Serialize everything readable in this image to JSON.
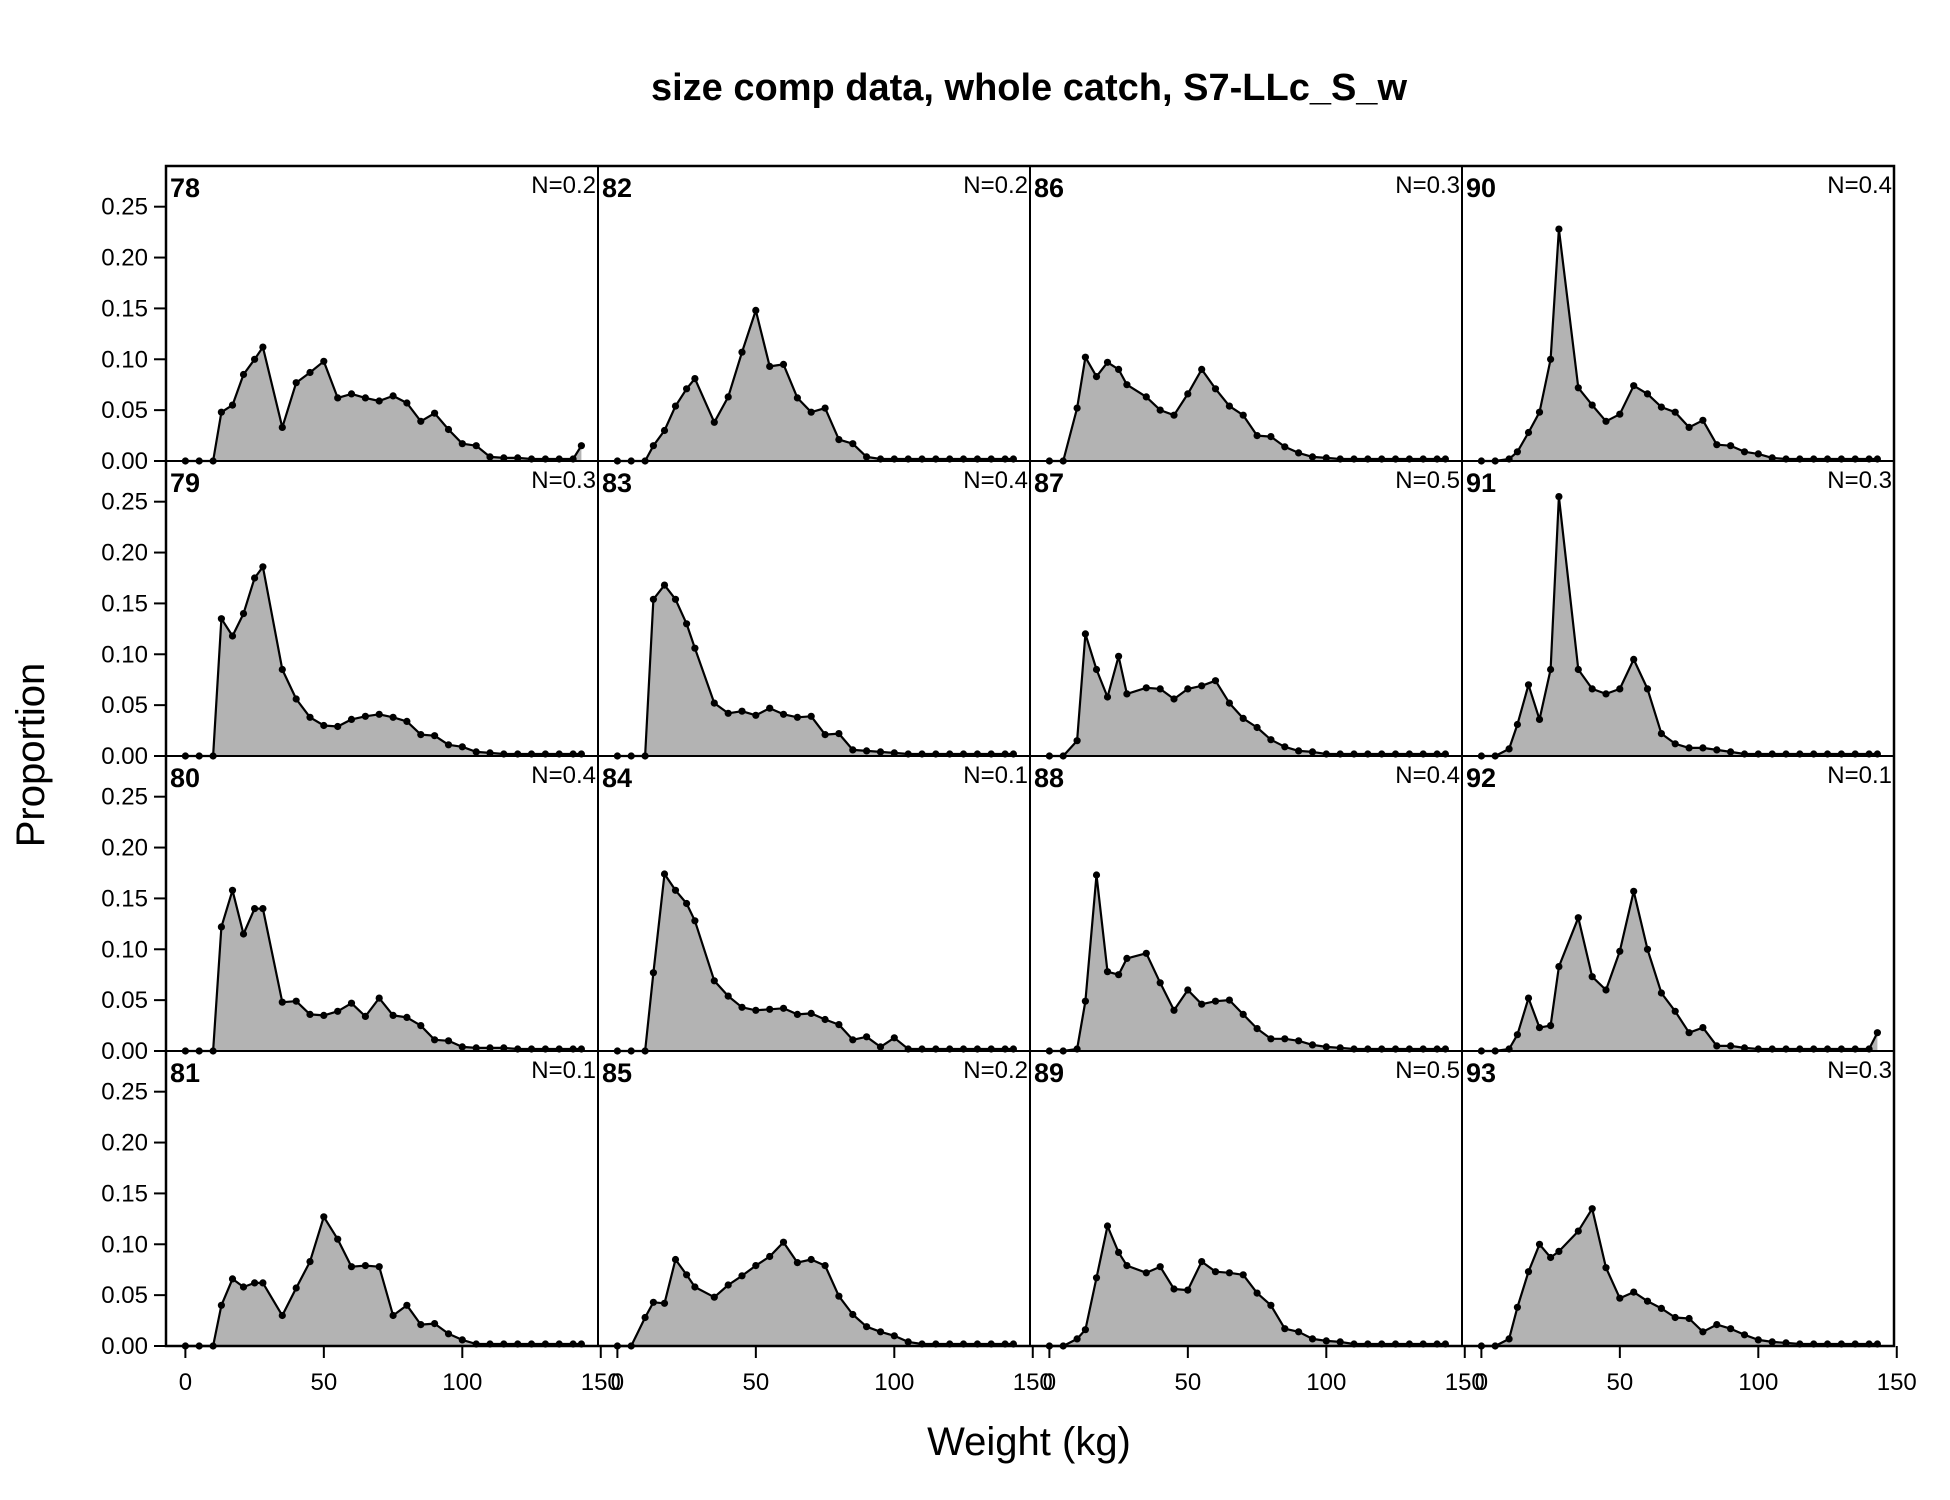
{
  "chart_data": {
    "type": "area",
    "title": "size comp data, whole catch, S7-LLc_S_w",
    "xlabel": "Weight (kg)",
    "ylabel": "Proportion",
    "xlim": [
      -7,
      149
    ],
    "ylim": [
      0,
      0.29
    ],
    "xticks": [
      0,
      50,
      100,
      150
    ],
    "xtick_labels": [
      "0",
      "50",
      "100",
      "150"
    ],
    "yticks": [
      0,
      0.05,
      0.1,
      0.15,
      0.2,
      0.25
    ],
    "ytick_labels": [
      "0.00",
      "0.05",
      "0.10",
      "0.15",
      "0.20",
      "0.25"
    ],
    "grid": false,
    "layout": {
      "rows": 4,
      "cols": 4,
      "order": "column-major"
    },
    "fill_color": "#b3b3b3",
    "line_color": "#000000",
    "x": [
      0,
      5,
      10,
      13,
      17,
      21,
      25,
      28,
      35,
      40,
      45,
      50,
      55,
      60,
      65,
      70,
      75,
      80,
      85,
      90,
      95,
      100,
      105,
      110,
      115,
      120,
      125,
      130,
      135,
      140,
      143
    ],
    "panels": [
      {
        "label": "78",
        "n_label": "N=0.2",
        "values": [
          0,
          0,
          0,
          0.048,
          0.055,
          0.085,
          0.1,
          0.112,
          0.033,
          0.077,
          0.087,
          0.098,
          0.062,
          0.066,
          0.062,
          0.059,
          0.064,
          0.057,
          0.039,
          0.047,
          0.031,
          0.017,
          0.015,
          0.004,
          0.003,
          0.003,
          0.002,
          0.002,
          0.002,
          0.002,
          0.015
        ]
      },
      {
        "label": "79",
        "n_label": "N=0.3",
        "values": [
          0,
          0,
          0,
          0.135,
          0.118,
          0.14,
          0.175,
          0.186,
          0.085,
          0.056,
          0.038,
          0.03,
          0.029,
          0.036,
          0.039,
          0.041,
          0.038,
          0.034,
          0.021,
          0.02,
          0.011,
          0.009,
          0.004,
          0.003,
          0.002,
          0.002,
          0.002,
          0.002,
          0.002,
          0.002,
          0.002
        ]
      },
      {
        "label": "80",
        "n_label": "N=0.4",
        "values": [
          0,
          0,
          0,
          0.122,
          0.158,
          0.115,
          0.14,
          0.14,
          0.048,
          0.049,
          0.036,
          0.035,
          0.039,
          0.047,
          0.034,
          0.052,
          0.035,
          0.033,
          0.025,
          0.011,
          0.01,
          0.004,
          0.003,
          0.003,
          0.003,
          0.002,
          0.002,
          0.002,
          0.002,
          0.002,
          0.002
        ]
      },
      {
        "label": "81",
        "n_label": "N=0.1",
        "values": [
          0,
          0,
          0,
          0.04,
          0.066,
          0.058,
          0.062,
          0.062,
          0.03,
          0.057,
          0.083,
          0.127,
          0.105,
          0.078,
          0.079,
          0.078,
          0.03,
          0.04,
          0.021,
          0.022,
          0.012,
          0.006,
          0.002,
          0.002,
          0.002,
          0.002,
          0.002,
          0.002,
          0.002,
          0.002,
          0.002
        ]
      },
      {
        "label": "82",
        "n_label": "N=0.2",
        "values": [
          0,
          0,
          0,
          0.015,
          0.03,
          0.054,
          0.071,
          0.081,
          0.038,
          0.063,
          0.107,
          0.148,
          0.093,
          0.095,
          0.062,
          0.048,
          0.052,
          0.021,
          0.017,
          0.004,
          0.002,
          0.002,
          0.002,
          0.002,
          0.002,
          0.002,
          0.002,
          0.002,
          0.002,
          0.002,
          0.002
        ]
      },
      {
        "label": "83",
        "n_label": "N=0.4",
        "values": [
          0,
          0,
          0,
          0.154,
          0.168,
          0.154,
          0.13,
          0.106,
          0.052,
          0.042,
          0.044,
          0.04,
          0.047,
          0.041,
          0.038,
          0.039,
          0.021,
          0.022,
          0.006,
          0.005,
          0.004,
          0.003,
          0.002,
          0.002,
          0.002,
          0.002,
          0.002,
          0.002,
          0.002,
          0.002,
          0.002
        ]
      },
      {
        "label": "84",
        "n_label": "N=0.1",
        "values": [
          0,
          0,
          0,
          0.077,
          0.174,
          0.158,
          0.145,
          0.128,
          0.069,
          0.054,
          0.043,
          0.04,
          0.041,
          0.042,
          0.036,
          0.037,
          0.031,
          0.026,
          0.011,
          0.014,
          0.004,
          0.013,
          0.002,
          0.002,
          0.002,
          0.002,
          0.002,
          0.002,
          0.002,
          0.002,
          0.002
        ]
      },
      {
        "label": "85",
        "n_label": "N=0.2",
        "values": [
          0,
          0,
          0.028,
          0.043,
          0.042,
          0.085,
          0.07,
          0.058,
          0.048,
          0.06,
          0.069,
          0.079,
          0.088,
          0.102,
          0.082,
          0.085,
          0.079,
          0.049,
          0.031,
          0.019,
          0.014,
          0.01,
          0.004,
          0.002,
          0.002,
          0.002,
          0.002,
          0.002,
          0.002,
          0.002,
          0.002
        ]
      },
      {
        "label": "86",
        "n_label": "N=0.3",
        "values": [
          0,
          0,
          0.052,
          0.102,
          0.083,
          0.097,
          0.09,
          0.075,
          0.063,
          0.05,
          0.045,
          0.066,
          0.09,
          0.071,
          0.054,
          0.045,
          0.025,
          0.024,
          0.014,
          0.008,
          0.004,
          0.003,
          0.002,
          0.002,
          0.002,
          0.002,
          0.002,
          0.002,
          0.002,
          0.002,
          0.002
        ]
      },
      {
        "label": "87",
        "n_label": "N=0.5",
        "values": [
          0,
          0,
          0.015,
          0.12,
          0.085,
          0.058,
          0.098,
          0.061,
          0.067,
          0.066,
          0.056,
          0.066,
          0.069,
          0.074,
          0.052,
          0.037,
          0.028,
          0.016,
          0.009,
          0.005,
          0.004,
          0.002,
          0.002,
          0.002,
          0.002,
          0.002,
          0.002,
          0.002,
          0.002,
          0.002,
          0.002
        ]
      },
      {
        "label": "88",
        "n_label": "N=0.4",
        "values": [
          0,
          0,
          0.002,
          0.049,
          0.173,
          0.078,
          0.075,
          0.091,
          0.096,
          0.067,
          0.04,
          0.06,
          0.046,
          0.049,
          0.05,
          0.036,
          0.022,
          0.012,
          0.012,
          0.01,
          0.006,
          0.004,
          0.003,
          0.002,
          0.002,
          0.002,
          0.002,
          0.002,
          0.002,
          0.002,
          0.002
        ]
      },
      {
        "label": "89",
        "n_label": "N=0.5",
        "values": [
          0,
          0,
          0.007,
          0.016,
          0.067,
          0.118,
          0.092,
          0.079,
          0.072,
          0.078,
          0.056,
          0.055,
          0.083,
          0.073,
          0.072,
          0.07,
          0.052,
          0.04,
          0.017,
          0.014,
          0.007,
          0.005,
          0.004,
          0.002,
          0.002,
          0.002,
          0.002,
          0.002,
          0.002,
          0.002,
          0.002
        ]
      },
      {
        "label": "90",
        "n_label": "N=0.4",
        "values": [
          0,
          0,
          0.002,
          0.009,
          0.028,
          0.048,
          0.1,
          0.228,
          0.072,
          0.055,
          0.039,
          0.046,
          0.074,
          0.066,
          0.053,
          0.048,
          0.033,
          0.04,
          0.016,
          0.015,
          0.009,
          0.007,
          0.003,
          0.002,
          0.002,
          0.002,
          0.002,
          0.002,
          0.002,
          0.002,
          0.002
        ]
      },
      {
        "label": "91",
        "n_label": "N=0.3",
        "values": [
          0,
          0,
          0.007,
          0.031,
          0.07,
          0.036,
          0.085,
          0.255,
          0.085,
          0.066,
          0.061,
          0.066,
          0.095,
          0.066,
          0.022,
          0.012,
          0.008,
          0.008,
          0.006,
          0.004,
          0.002,
          0.002,
          0.002,
          0.002,
          0.002,
          0.002,
          0.002,
          0.002,
          0.002,
          0.002,
          0.002
        ]
      },
      {
        "label": "92",
        "n_label": "N=0.1",
        "values": [
          0,
          0,
          0.002,
          0.016,
          0.052,
          0.023,
          0.025,
          0.083,
          0.131,
          0.073,
          0.06,
          0.098,
          0.157,
          0.1,
          0.057,
          0.039,
          0.018,
          0.023,
          0.005,
          0.005,
          0.003,
          0.002,
          0.002,
          0.002,
          0.002,
          0.002,
          0.002,
          0.002,
          0.002,
          0.002,
          0.018
        ]
      },
      {
        "label": "93",
        "n_label": "N=0.3",
        "values": [
          0,
          0,
          0.007,
          0.038,
          0.073,
          0.1,
          0.087,
          0.093,
          0.113,
          0.135,
          0.077,
          0.047,
          0.053,
          0.044,
          0.037,
          0.028,
          0.027,
          0.014,
          0.021,
          0.017,
          0.011,
          0.006,
          0.004,
          0.003,
          0.002,
          0.002,
          0.002,
          0.002,
          0.002,
          0.002,
          0.002
        ]
      }
    ]
  }
}
